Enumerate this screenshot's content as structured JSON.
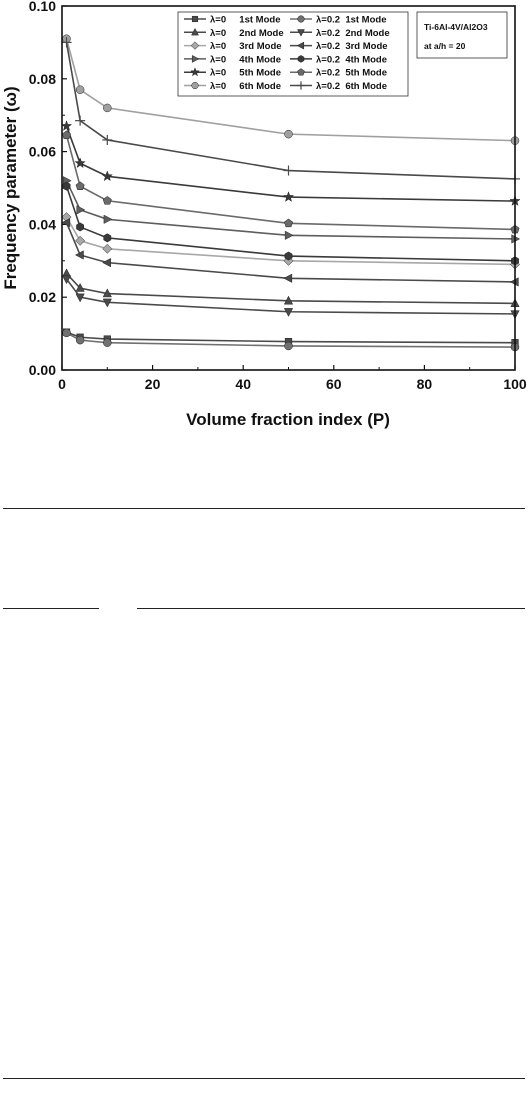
{
  "chart_data": {
    "type": "line",
    "xlabel": "Volume fraction index (P)",
    "ylabel": "Frequency parameter (ω)",
    "xlim": [
      0,
      100
    ],
    "ylim": [
      0,
      0.1
    ],
    "x_ticks": [
      "0",
      "20",
      "40",
      "60",
      "80",
      "100"
    ],
    "y_ticks": [
      "0.00",
      "0.02",
      "0.04",
      "0.06",
      "0.08",
      "0.10"
    ],
    "x": [
      1,
      4,
      10,
      50,
      100
    ],
    "legend_placement": "top-right",
    "annotation": [
      "Ti-6Al-4V/Al2O3",
      "at  a/h = 20"
    ],
    "series": [
      {
        "name": "λ=0     1st Mode",
        "marker": "square",
        "color": "#4a4a4a",
        "values": [
          0.0104,
          0.009,
          0.0085,
          0.0078,
          0.0075
        ]
      },
      {
        "name": "λ=0     2nd Mode",
        "marker": "triangle-up",
        "color": "#4a4a4a",
        "values": [
          0.0265,
          0.0225,
          0.021,
          0.019,
          0.0183
        ]
      },
      {
        "name": "λ=0     3rd Mode",
        "marker": "diamond",
        "color": "#a8a8a8",
        "values": [
          0.042,
          0.0355,
          0.0333,
          0.03,
          0.029
        ]
      },
      {
        "name": "λ=0     4th Mode",
        "marker": "triangle-right",
        "color": "#5e5e5e",
        "values": [
          0.052,
          0.044,
          0.0414,
          0.037,
          0.036
        ]
      },
      {
        "name": "λ=0     5th Mode",
        "marker": "star",
        "color": "#3a3a3a",
        "values": [
          0.067,
          0.0568,
          0.0532,
          0.0475,
          0.0464
        ]
      },
      {
        "name": "λ=0     6th Mode",
        "marker": "circle",
        "color": "#a0a0a0",
        "values": [
          0.091,
          0.077,
          0.072,
          0.0648,
          0.063
        ]
      },
      {
        "name": "λ=0.2  1st Mode",
        "marker": "circle",
        "color": "#707070",
        "values": [
          0.0102,
          0.0082,
          0.0075,
          0.0066,
          0.0063
        ]
      },
      {
        "name": "λ=0.2  2nd Mode",
        "marker": "triangle-down",
        "color": "#4a4a4a",
        "values": [
          0.025,
          0.02,
          0.0186,
          0.016,
          0.0154
        ]
      },
      {
        "name": "λ=0.2  3rd Mode",
        "marker": "triangle-left",
        "color": "#4a4a4a",
        "values": [
          0.0405,
          0.0316,
          0.0295,
          0.0252,
          0.0242
        ]
      },
      {
        "name": "λ=0.2  4th Mode",
        "marker": "hexagon",
        "color": "#3a3a3a",
        "values": [
          0.0505,
          0.0393,
          0.0363,
          0.0313,
          0.03
        ]
      },
      {
        "name": "λ=0.2  5th Mode",
        "marker": "pentagon",
        "color": "#6a6a6a",
        "values": [
          0.0645,
          0.0505,
          0.0465,
          0.0403,
          0.0386
        ]
      },
      {
        "name": "λ=0.2  6th Mode",
        "marker": "plus",
        "color": "#4a4a4a",
        "values": [
          0.09,
          0.0685,
          0.0632,
          0.0548,
          0.0525
        ]
      }
    ]
  }
}
